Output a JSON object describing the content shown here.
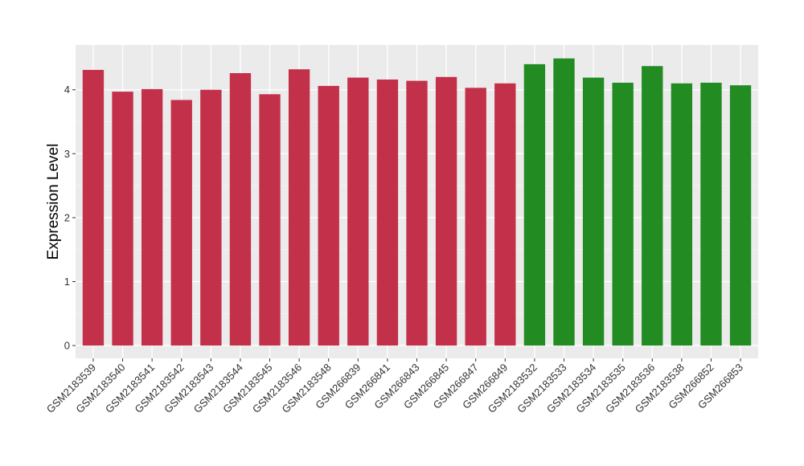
{
  "chart_data": {
    "type": "bar",
    "title": "",
    "xlabel": "",
    "ylabel": "Expression Level",
    "ylim": [
      -0.2,
      4.7
    ],
    "yticks": [
      0,
      1,
      2,
      3,
      4
    ],
    "grid": true,
    "panel_background": "#EBEBEB",
    "categories": [
      "GSM2183539",
      "GSM2183540",
      "GSM2183541",
      "GSM2183542",
      "GSM2183543",
      "GSM2183544",
      "GSM2183545",
      "GSM2183546",
      "GSM2183548",
      "GSM266839",
      "GSM266841",
      "GSM266843",
      "GSM266845",
      "GSM266847",
      "GSM266849",
      "GSM2183532",
      "GSM2183533",
      "GSM2183534",
      "GSM2183535",
      "GSM2183536",
      "GSM2183538",
      "GSM266852",
      "GSM266853"
    ],
    "values": [
      4.31,
      3.97,
      4.01,
      3.84,
      4.0,
      4.26,
      3.93,
      4.32,
      4.06,
      4.19,
      4.16,
      4.14,
      4.2,
      4.03,
      4.1,
      4.4,
      4.49,
      4.19,
      4.11,
      4.37,
      4.1,
      4.11,
      4.07
    ],
    "bar_colors": [
      "#C3304A",
      "#C3304A",
      "#C3304A",
      "#C3304A",
      "#C3304A",
      "#C3304A",
      "#C3304A",
      "#C3304A",
      "#C3304A",
      "#C3304A",
      "#C3304A",
      "#C3304A",
      "#C3304A",
      "#C3304A",
      "#C3304A",
      "#228B22",
      "#228B22",
      "#228B22",
      "#228B22",
      "#228B22",
      "#228B22",
      "#228B22",
      "#228B22"
    ]
  }
}
